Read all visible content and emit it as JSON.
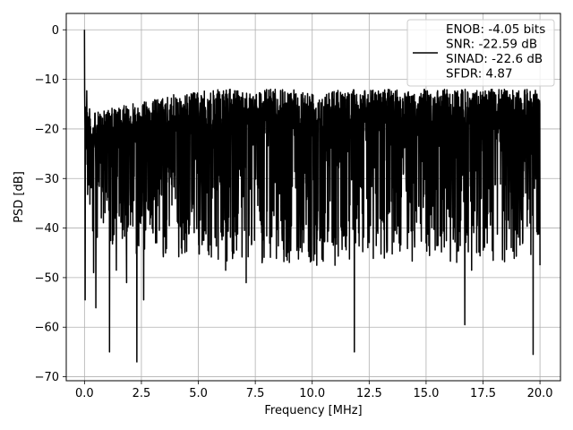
{
  "chart_data": {
    "type": "line",
    "xlabel": "Frequency [MHz]",
    "ylabel": "PSD [dB]",
    "xlim": [
      -0.8,
      20.9
    ],
    "ylim": [
      -70.8,
      3.3
    ],
    "xticks": [
      0.0,
      2.5,
      5.0,
      7.5,
      10.0,
      12.5,
      15.0,
      17.5,
      20.0
    ],
    "xtick_labels": [
      "0.0",
      "2.5",
      "5.0",
      "7.5",
      "10.0",
      "12.5",
      "15.0",
      "17.5",
      "20.0"
    ],
    "yticks": [
      0,
      -10,
      -20,
      -30,
      -40,
      -50,
      -60,
      -70
    ],
    "ytick_labels": [
      "0",
      "−10",
      "−20",
      "−30",
      "−40",
      "−50",
      "−60",
      "−70"
    ],
    "grid": true,
    "legend_position": "top-right",
    "series": [
      {
        "name": "ENOB: -4.05 bits\nSNR: -22.59 dB\nSINAD: -22.6 dB\nSFDR: 4.87",
        "color": "#000000",
        "x_range": [
          0,
          20
        ],
        "envelope": {
          "x": [
            0.0,
            0.05,
            0.3,
            1.0,
            2.0,
            3.0,
            4.0,
            6.0,
            8.0,
            10.0,
            12.0,
            14.0,
            16.0,
            18.0,
            20.0
          ],
          "upper": [
            -12,
            -13,
            -17,
            -16,
            -15,
            -14,
            -13,
            -12,
            -12,
            -12,
            -12,
            -12,
            -12,
            -12,
            -12
          ],
          "band_low": [
            -25,
            -27,
            -38,
            -39,
            -40,
            -41,
            -41,
            -42,
            -42,
            -42,
            -42,
            -42,
            -42,
            -42,
            -42
          ]
        },
        "peaks": [
          {
            "x": 0.0,
            "y": 0.0
          },
          {
            "x": 0.03,
            "y": -54.5
          },
          {
            "x": 0.1,
            "y": -12.3
          },
          {
            "x": 0.4,
            "y": -49.0
          },
          {
            "x": 0.5,
            "y": -56.1
          },
          {
            "x": 1.1,
            "y": -65.0
          },
          {
            "x": 1.4,
            "y": -48.5
          },
          {
            "x": 1.85,
            "y": -51.0
          },
          {
            "x": 2.3,
            "y": -67.0
          },
          {
            "x": 2.6,
            "y": -54.5
          },
          {
            "x": 6.2,
            "y": -48.5
          },
          {
            "x": 7.1,
            "y": -51.0
          },
          {
            "x": 7.8,
            "y": -47.0
          },
          {
            "x": 8.9,
            "y": -46.5
          },
          {
            "x": 10.2,
            "y": -47.5
          },
          {
            "x": 11.0,
            "y": -47.5
          },
          {
            "x": 11.85,
            "y": -65.0
          },
          {
            "x": 16.7,
            "y": -59.5
          },
          {
            "x": 17.0,
            "y": -48.5
          },
          {
            "x": 19.7,
            "y": -65.5
          },
          {
            "x": 20.0,
            "y": -47.5
          }
        ]
      }
    ]
  }
}
